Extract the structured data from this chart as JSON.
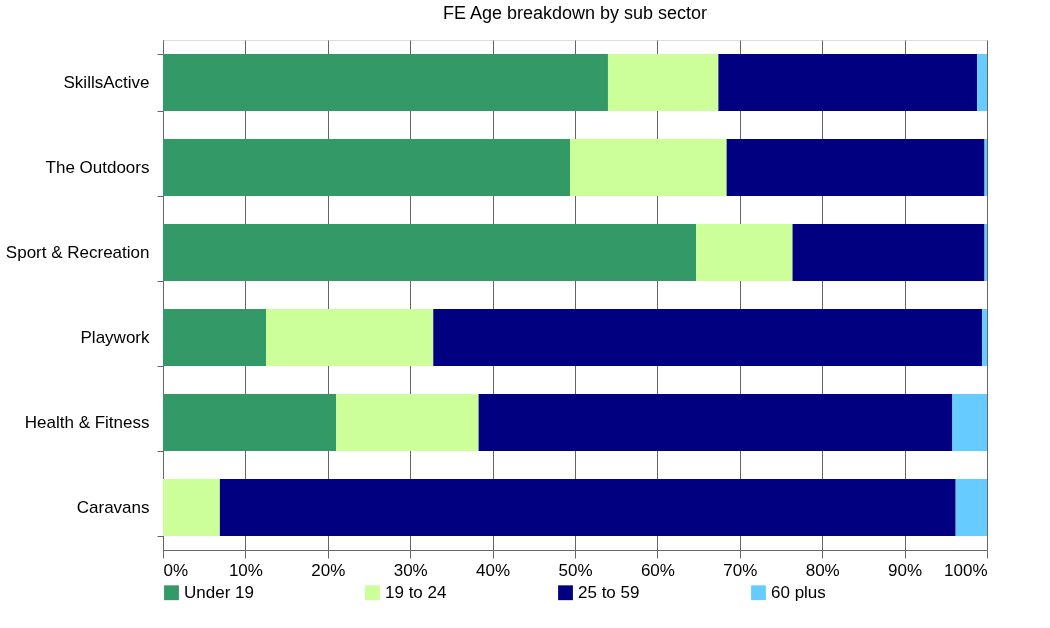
{
  "chart_data": {
    "type": "bar",
    "orientation": "horizontal",
    "stacked": true,
    "title": "FE Age breakdown by sub sector",
    "categories": [
      "SkillsActive",
      "The Outdoors",
      "Sport & Recreation",
      "Playwork",
      "Health & Fitness",
      "Caravans"
    ],
    "series": [
      {
        "name": "Under 19",
        "color": "#339966",
        "values": [
          54.0,
          49.4,
          64.7,
          12.5,
          21.0,
          0
        ]
      },
      {
        "name": "19 to 24",
        "color": "#ccff99",
        "values": [
          13.4,
          19.0,
          11.7,
          20.3,
          17.3,
          6.9
        ]
      },
      {
        "name": "25 to 59",
        "color": "#000080",
        "values": [
          31.4,
          31.3,
          23.3,
          66.6,
          57.5,
          89.3
        ]
      },
      {
        "name": "60 plus",
        "color": "#66ccff",
        "values": [
          1.2,
          0.3,
          0.3,
          0.6,
          4.2,
          3.8
        ]
      }
    ],
    "xlim": [
      0,
      100
    ],
    "xticks": [
      {
        "value": 0,
        "label": "0%"
      },
      {
        "value": 10,
        "label": "10%"
      },
      {
        "value": 20,
        "label": "20%"
      },
      {
        "value": 30,
        "label": "30%"
      },
      {
        "value": 40,
        "label": "40%"
      },
      {
        "value": 50,
        "label": "50%"
      },
      {
        "value": 60,
        "label": "60%"
      },
      {
        "value": 70,
        "label": "70%"
      },
      {
        "value": 80,
        "label": "80%"
      },
      {
        "value": 90,
        "label": "90%"
      },
      {
        "value": 100,
        "label": "100%"
      }
    ],
    "grid": "x",
    "legend": "bottom"
  }
}
